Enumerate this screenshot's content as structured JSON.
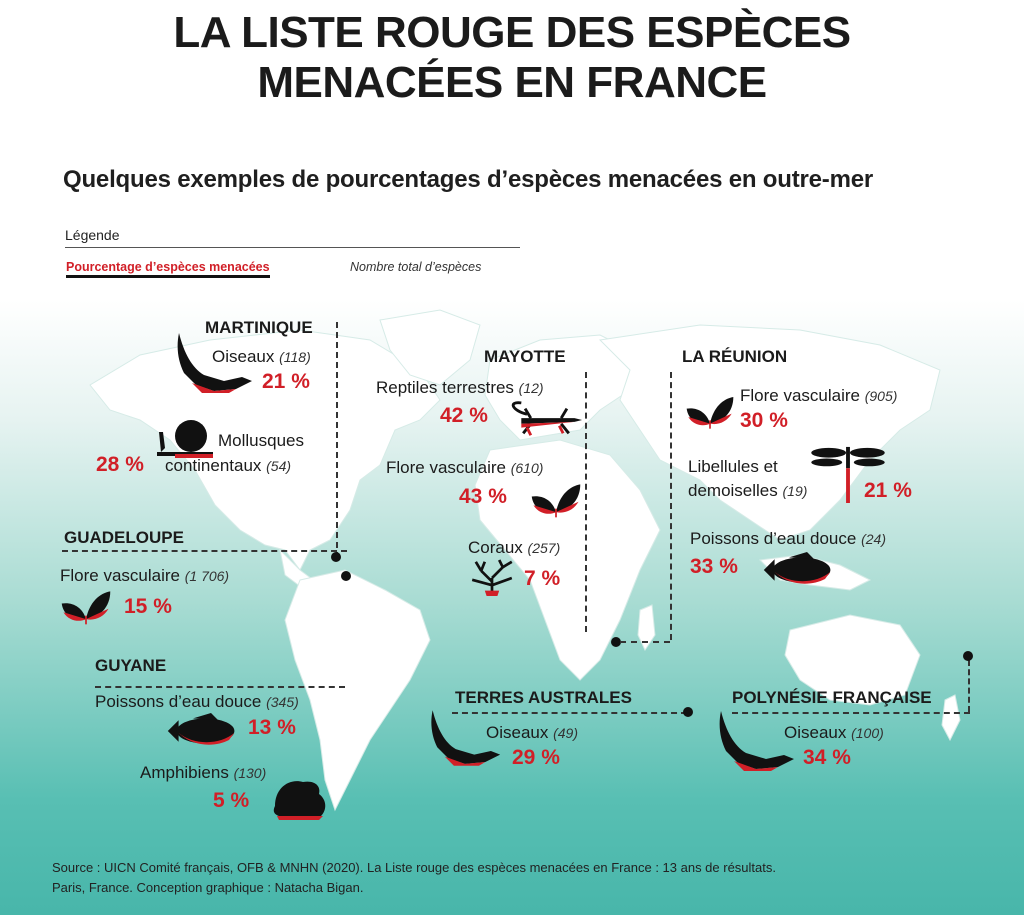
{
  "title_line1": "LA LISTE ROUGE DES ESPÈCES",
  "title_line2": "MENACÉES EN FRANCE",
  "subtitle": "Quelques exemples de pourcentages d’espèces menacées en outre-mer",
  "legend": {
    "title": "Légende",
    "percentage_label": "Pourcentage d’espèces menacées",
    "total_label": "Nombre total d’espèces"
  },
  "regions": {
    "martinique": {
      "name": "MARTINIQUE",
      "items": [
        {
          "label": "Oiseaux",
          "count": "(118)",
          "pct": "21 %",
          "icon": "bird-icon"
        },
        {
          "label1": "Mollusques",
          "label2": "continentaux",
          "count": "(54)",
          "pct": "28 %",
          "icon": "snail-icon"
        }
      ]
    },
    "guadeloupe": {
      "name": "GUADELOUPE",
      "items": [
        {
          "label": "Flore vasculaire",
          "count": "(1 706)",
          "pct": "15 %",
          "icon": "leaf-icon"
        }
      ]
    },
    "guyane": {
      "name": "GUYANE",
      "items": [
        {
          "label": "Poissons d’eau douce",
          "count": "(345)",
          "pct": "13 %",
          "icon": "fish-icon"
        },
        {
          "label": "Amphibiens",
          "count": "(130)",
          "pct": "5 %",
          "icon": "frog-icon"
        }
      ]
    },
    "mayotte": {
      "name": "MAYOTTE",
      "items": [
        {
          "label": "Reptiles terrestres",
          "count": "(12)",
          "pct": "42 %",
          "icon": "lizard-icon"
        },
        {
          "label": "Flore vasculaire",
          "count": "(610)",
          "pct": "43 %",
          "icon": "leaf-icon"
        },
        {
          "label": "Coraux",
          "count": "(257)",
          "pct": "7 %",
          "icon": "coral-icon"
        }
      ]
    },
    "reunion": {
      "name": "LA RÉUNION",
      "items": [
        {
          "label": "Flore vasculaire",
          "count": "(905)",
          "pct": "30 %",
          "icon": "leaf-icon"
        },
        {
          "label1": "Libellules et",
          "label2": "demoiselles",
          "count": "(19)",
          "pct": "21 %",
          "icon": "dragonfly-icon"
        },
        {
          "label": "Poissons d’eau douce",
          "count": "(24)",
          "pct": "33 %",
          "icon": "fish-icon"
        }
      ]
    },
    "terres_australes": {
      "name": "TERRES AUSTRALES",
      "items": [
        {
          "label": "Oiseaux",
          "count": "(49)",
          "pct": "29 %",
          "icon": "bird-icon"
        }
      ]
    },
    "polynesie": {
      "name": "POLYNÉSIE FRANÇAISE",
      "items": [
        {
          "label": "Oiseaux",
          "count": "(100)",
          "pct": "34 %",
          "icon": "bird-icon"
        }
      ]
    }
  },
  "source_line1": "Source : UICN Comité français, OFB & MNHN (2020). La Liste rouge des espèces menacées en France : 13 ans de résultats.",
  "source_line2": "Paris, France. Conception graphique : Natacha Bigan.",
  "colors": {
    "accent": "#d11f27",
    "ocean": "#48b6aa",
    "land": "#ffffff",
    "text": "#1b1b1b"
  }
}
